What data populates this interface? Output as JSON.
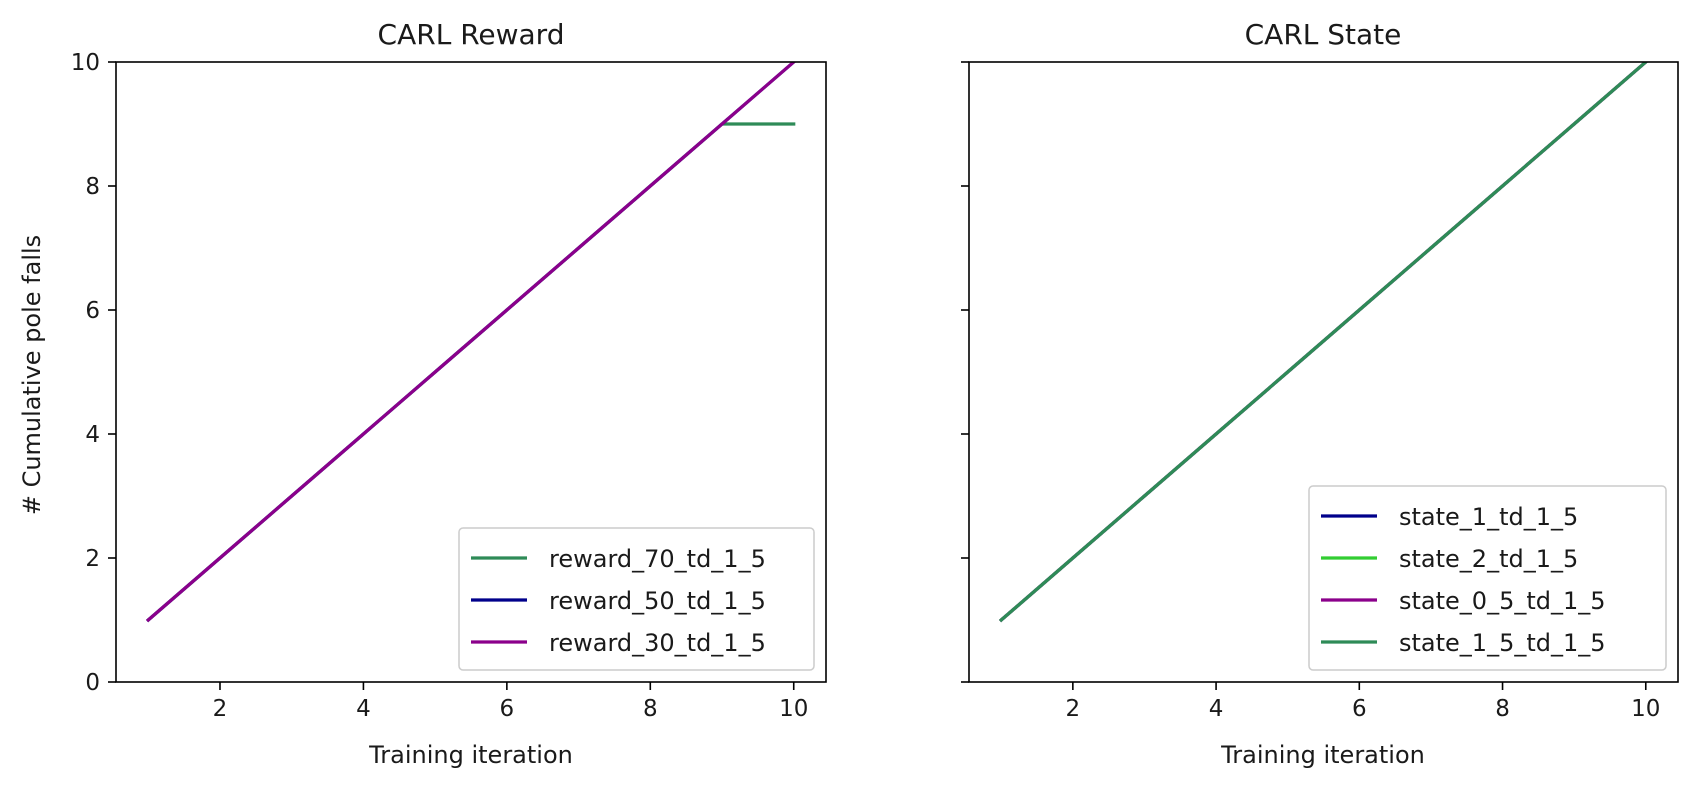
{
  "chart_data": [
    {
      "type": "line",
      "title": "CARL Reward",
      "xlabel": "Training iteration",
      "ylabel": "# Cumulative pole falls",
      "xlim": [
        0.55,
        10.45
      ],
      "ylim": [
        0,
        10
      ],
      "xticks": [
        2,
        4,
        6,
        8,
        10
      ],
      "yticks": [
        0,
        2,
        4,
        6,
        8,
        10
      ],
      "show_yticklabels": true,
      "grid": false,
      "legend_position": "lower right",
      "series": [
        {
          "name": "reward_70_td_1_5",
          "color": "#2e8b57",
          "x": [
            1,
            2,
            3,
            4,
            5,
            6,
            7,
            8,
            9,
            10
          ],
          "y": [
            1,
            2,
            3,
            4,
            5,
            6,
            7,
            8,
            9,
            9
          ]
        },
        {
          "name": "reward_50_td_1_5",
          "color": "#00008b",
          "x": [
            1,
            2,
            3,
            4,
            5,
            6,
            7,
            8,
            9,
            10
          ],
          "y": [
            1,
            2,
            3,
            4,
            5,
            6,
            7,
            8,
            9,
            10
          ]
        },
        {
          "name": "reward_30_td_1_5",
          "color": "#8b008b",
          "x": [
            1,
            2,
            3,
            4,
            5,
            6,
            7,
            8,
            9,
            10
          ],
          "y": [
            1,
            2,
            3,
            4,
            5,
            6,
            7,
            8,
            9,
            10
          ]
        }
      ]
    },
    {
      "type": "line",
      "title": "CARL State",
      "xlabel": "Training iteration",
      "ylabel": "",
      "xlim": [
        0.55,
        10.45
      ],
      "ylim": [
        0,
        10
      ],
      "xticks": [
        2,
        4,
        6,
        8,
        10
      ],
      "yticks": [
        0,
        2,
        4,
        6,
        8,
        10
      ],
      "show_yticklabels": false,
      "grid": false,
      "legend_position": "lower right",
      "series": [
        {
          "name": "state_1_td_1_5",
          "color": "#00008b",
          "x": [
            1,
            2,
            3,
            4,
            5,
            6,
            7,
            8,
            9,
            10
          ],
          "y": [
            1,
            2,
            3,
            4,
            5,
            6,
            7,
            8,
            9,
            10
          ]
        },
        {
          "name": "state_2_td_1_5",
          "color": "#32cd32",
          "x": [
            1,
            2,
            3,
            4,
            5,
            6,
            7,
            8,
            9,
            10
          ],
          "y": [
            1,
            2,
            3,
            4,
            5,
            6,
            7,
            8,
            9,
            10
          ]
        },
        {
          "name": "state_0_5_td_1_5",
          "color": "#8b008b",
          "x": [
            1,
            2,
            3,
            4,
            5,
            6,
            7,
            8,
            9,
            10
          ],
          "y": [
            1,
            2,
            3,
            4,
            5,
            6,
            7,
            8,
            9,
            10
          ]
        },
        {
          "name": "state_1_5_td_1_5",
          "color": "#2e8b57",
          "x": [
            1,
            2,
            3,
            4,
            5,
            6,
            7,
            8,
            9,
            10
          ],
          "y": [
            1,
            2,
            3,
            4,
            5,
            6,
            7,
            8,
            9,
            10
          ]
        }
      ]
    }
  ]
}
